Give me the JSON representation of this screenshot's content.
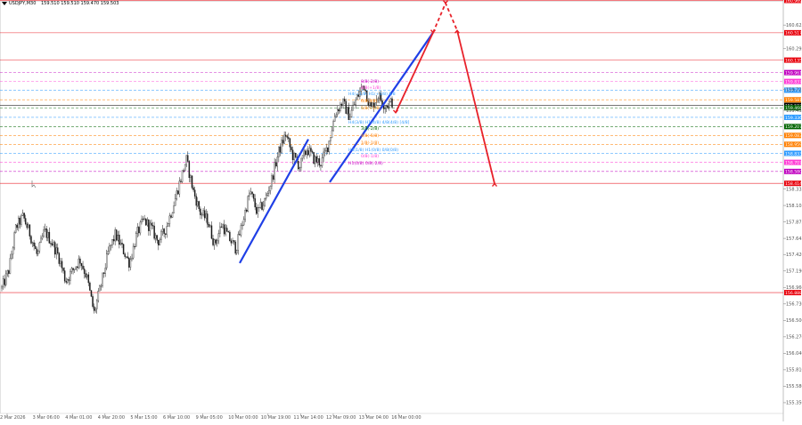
{
  "header": {
    "symbol": "USDJPY,M30",
    "ohlc": "159.510 159.510 159.470 159.503"
  },
  "chart_data": {
    "type": "candlestick",
    "x_tick_labels": [
      "2 Mar 2026",
      "3 Mar 06:00",
      "4 Mar 01:00",
      "4 Mar 20:00",
      "5 Mar 15:00",
      "6 Mar 10:00",
      "9 Mar 05:00",
      "10 Mar 00:00",
      "10 Mar 19:00",
      "11 Mar 14:00",
      "12 Mar 09:00",
      "13 Mar 04:00",
      "16 Mar 00:00"
    ],
    "y_tick_labels": [
      "160.625",
      "160.295",
      "159.725",
      "159.435",
      "158.335",
      "158.105",
      "157.875",
      "157.645",
      "157.420",
      "157.190",
      "156.960",
      "156.730",
      "156.500",
      "156.270",
      "156.040",
      "155.810",
      "155.580",
      "155.350"
    ],
    "ylim": [
      155.2,
      160.95
    ],
    "price_path": [
      156.95,
      157.2,
      157.8,
      157.95,
      157.7,
      157.4,
      157.75,
      157.6,
      157.4,
      157.05,
      157.2,
      157.35,
      157.1,
      156.6,
      157.0,
      157.45,
      157.7,
      157.5,
      157.3,
      157.7,
      157.9,
      157.8,
      157.6,
      157.75,
      158.05,
      158.4,
      158.75,
      158.3,
      158.0,
      157.9,
      157.55,
      157.85,
      157.65,
      157.5,
      157.9,
      158.3,
      158.0,
      158.15,
      158.45,
      158.85,
      159.1,
      158.8,
      158.65,
      158.9,
      158.75,
      158.7,
      158.95,
      159.4,
      159.55,
      159.35,
      159.6,
      159.8,
      159.45,
      159.65,
      159.5,
      159.55
    ],
    "series": [],
    "horizontal_levels": [
      {
        "price": 160.969,
        "label": "160.969",
        "color": "#e8000b",
        "style": "solid"
      },
      {
        "price": 160.517,
        "label": "160.517",
        "color": "#e8000b",
        "style": "solid"
      },
      {
        "price": 160.135,
        "label": "160.135",
        "color": "#e8000b",
        "style": "solid"
      },
      {
        "price": 159.961,
        "label": "159.961",
        "color": "#c000c0",
        "style": "dash"
      },
      {
        "price": 159.837,
        "label": "159.837",
        "color": "#ff3bd5",
        "style": "dash"
      },
      {
        "price": 159.715,
        "label": "159.715",
        "color": "#2e9bff",
        "style": "dash"
      },
      {
        "price": 159.581,
        "label": "159.581",
        "color": "#ff7f00",
        "style": "dash"
      },
      {
        "price": 159.503,
        "label": "159.503",
        "color": "#000000",
        "style": "solid"
      },
      {
        "price": 159.469,
        "label": "159.469",
        "color": "#006400",
        "style": "dash"
      },
      {
        "price": 159.336,
        "label": "159.336",
        "color": "#2e9bff",
        "style": "dash"
      },
      {
        "price": 159.207,
        "label": "159.207",
        "color": "#006400",
        "style": "dash"
      },
      {
        "price": 159.083,
        "label": "159.083",
        "color": "#ff7f00",
        "style": "dash"
      },
      {
        "price": 158.959,
        "label": "158.959",
        "color": "#ff7f00",
        "style": "dash"
      },
      {
        "price": 158.833,
        "label": "158.833",
        "color": "#2e9bff",
        "style": "dash"
      },
      {
        "price": 158.707,
        "label": "158.707",
        "color": "#ff3bd5",
        "style": "dash"
      },
      {
        "price": 158.58,
        "label": "158.580",
        "color": "#c000c0",
        "style": "dash"
      },
      {
        "price": 158.414,
        "label": "158.414",
        "color": "#e8000b",
        "style": "solid"
      },
      {
        "price": 156.888,
        "label": "156.888",
        "color": "#e8000b",
        "style": "solid"
      }
    ],
    "level_annotations": [
      {
        "text": "8/8(-2/8)",
        "color": "#c000c0"
      },
      {
        "text": "8/8(+1/8)",
        "color": "#ff3bd5"
      },
      {
        "text": "H4(+1/8) H1(+2/8) 8/8",
        "color": "#2e9bff"
      },
      {
        "text": "6/8(3/8)",
        "color": "#ff7f00"
      },
      {
        "text": "5/8(+1/8)",
        "color": "#ff7f00"
      },
      {
        "text": "H4(3/8) H1(4/8) 4/8(4/8) [4/8]",
        "color": "#2e9bff"
      },
      {
        "text": "3/8(-2/8)",
        "color": "#006400"
      },
      {
        "text": "4/8(-5/8)",
        "color": "#ff7f00"
      },
      {
        "text": "1/8(-1/8)",
        "color": "#ff7f00"
      },
      {
        "text": "H4(1/8) H1(0/8) 0/8(0/8)",
        "color": "#2e9bff"
      },
      {
        "text": "0/8(-1/8)",
        "color": "#ff3bd5"
      },
      {
        "text": "H1(0/8) 0/8(-2/8)",
        "color": "#c000c0"
      }
    ],
    "overlay_colors": {
      "trend": "#1f3fe6",
      "projection": "#e8222a"
    }
  }
}
